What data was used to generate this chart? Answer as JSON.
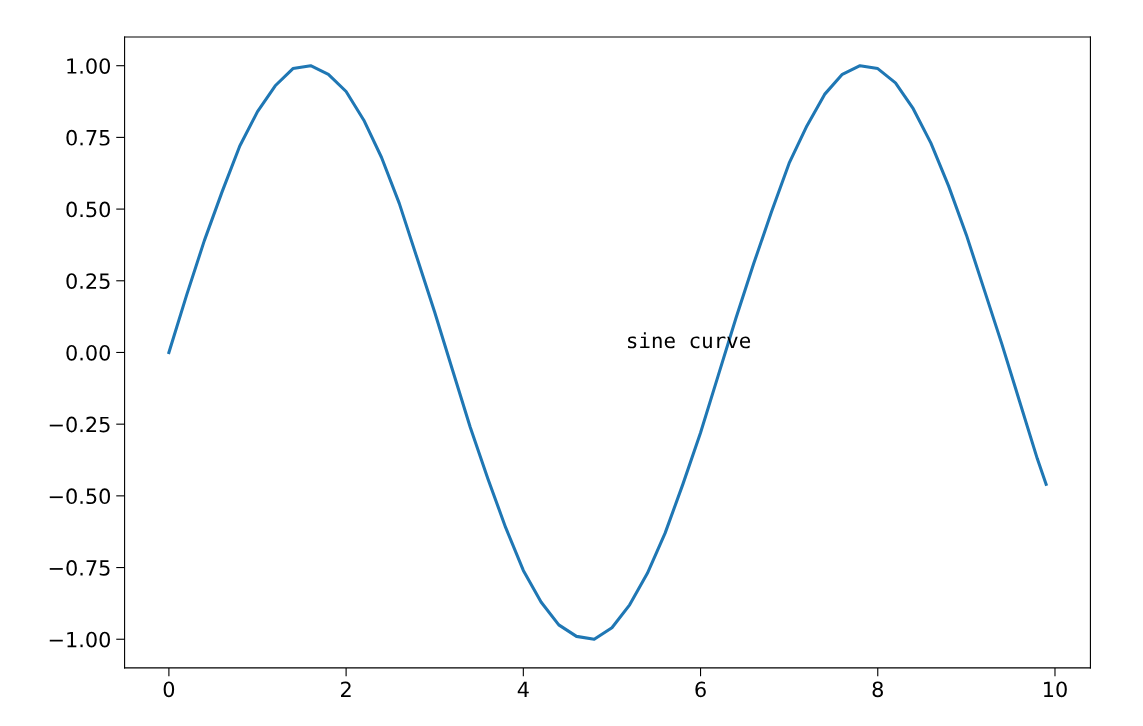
{
  "chart_data": {
    "type": "line",
    "x": [
      0,
      0.2,
      0.4,
      0.6,
      0.8,
      1.0,
      1.2,
      1.4,
      1.6,
      1.8,
      2.0,
      2.2,
      2.4,
      2.6,
      2.8,
      3.0,
      3.2,
      3.4,
      3.6,
      3.8,
      4.0,
      4.2,
      4.4,
      4.6,
      4.8,
      5.0,
      5.2,
      5.4,
      5.6,
      5.8,
      6.0,
      6.2,
      6.4,
      6.6,
      6.8,
      7.0,
      7.2,
      7.4,
      7.6,
      7.8,
      8.0,
      8.2,
      8.4,
      8.6,
      8.8,
      9.0,
      9.2,
      9.4,
      9.6,
      9.8,
      9.9
    ],
    "series": [
      {
        "color": "#1f77b4",
        "values": [
          0,
          0.2,
          0.39,
          0.56,
          0.72,
          0.84,
          0.93,
          0.99,
          1.0,
          0.97,
          0.91,
          0.81,
          0.68,
          0.52,
          0.33,
          0.14,
          -0.06,
          -0.26,
          -0.44,
          -0.61,
          -0.76,
          -0.87,
          -0.95,
          -0.99,
          -1.0,
          -0.96,
          -0.88,
          -0.77,
          -0.63,
          -0.46,
          -0.28,
          -0.08,
          0.12,
          0.31,
          0.49,
          0.66,
          0.79,
          0.9,
          0.97,
          1.0,
          0.99,
          0.94,
          0.85,
          0.73,
          0.58,
          0.41,
          0.22,
          0.03,
          -0.17,
          -0.37,
          -0.46
        ]
      }
    ],
    "xlim": [
      -0.5,
      10.4
    ],
    "xticks": [
      0,
      2,
      4,
      6,
      8,
      10
    ],
    "ylim": [
      -1.1,
      1.1
    ],
    "yticks": [
      {
        "value": -1,
        "label": "−1.00"
      },
      {
        "value": -0.75,
        "label": "−0.75"
      },
      {
        "value": -0.5,
        "label": "−0.50"
      },
      {
        "value": -0.25,
        "label": "−0.25"
      },
      {
        "value": 0,
        "label": "0.00"
      },
      {
        "value": 0.25,
        "label": "0.25"
      },
      {
        "value": 0.5,
        "label": "0.50"
      },
      {
        "value": 0.75,
        "label": "0.75"
      },
      {
        "value": 1,
        "label": "1.00"
      }
    ],
    "annotations": [
      "sine curve"
    ],
    "grid": false,
    "legend": false,
    "marker": "none",
    "line_style": "solid"
  }
}
